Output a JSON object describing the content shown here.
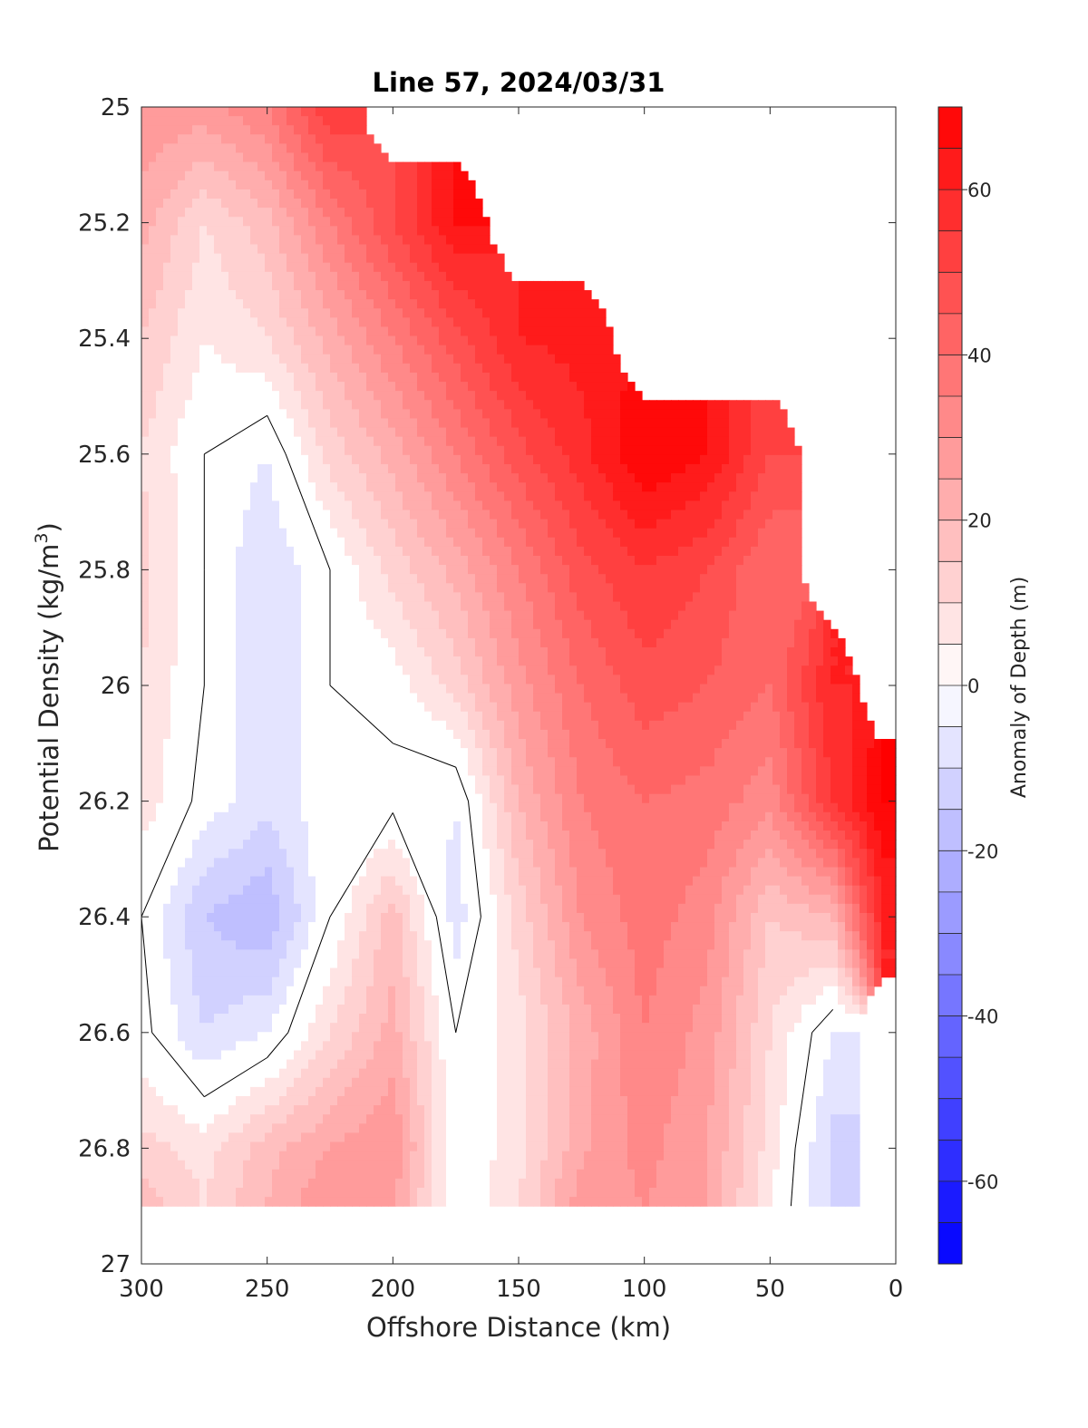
{
  "chart_data": {
    "type": "contourf",
    "title": "Line 57, 2024/03/31",
    "xlabel": "Offshore Distance (km)",
    "ylabel_prefix": "Potential Density (kg/m",
    "ylabel_sup": "3",
    "ylabel_suffix": ")",
    "xlim": [
      300,
      0
    ],
    "x_reversed": true,
    "ylim": [
      25,
      27
    ],
    "y_reversed": true,
    "xticks": [
      300,
      250,
      200,
      150,
      100,
      50,
      0
    ],
    "yticks": [
      25,
      25.2,
      25.4,
      25.6,
      25.8,
      26,
      26.2,
      26.4,
      26.6,
      26.8,
      27
    ],
    "colorbar": {
      "label": "Anomaly of Depth (m)",
      "range": [
        -70,
        70
      ],
      "ticks": [
        -60,
        -40,
        -20,
        0,
        20,
        40,
        60
      ],
      "level_step": 5,
      "low_color": "#0000ff",
      "mid_color": "#ffffff",
      "high_color": "#ff0000"
    },
    "zero_contour": "black",
    "x": [
      300,
      275,
      250,
      225,
      200,
      175,
      150,
      125,
      100,
      75,
      50,
      25,
      5
    ],
    "y": [
      25.0,
      25.2,
      25.4,
      25.6,
      25.8,
      26.0,
      26.2,
      26.4,
      26.6,
      26.8,
      26.9
    ],
    "z": [
      [
        30,
        28,
        35,
        55,
        null,
        null,
        null,
        null,
        null,
        null,
        null,
        null,
        null
      ],
      [
        22,
        10,
        18,
        35,
        50,
        65,
        null,
        null,
        null,
        null,
        null,
        null,
        null
      ],
      [
        15,
        5,
        10,
        22,
        35,
        48,
        60,
        62,
        null,
        null,
        null,
        null,
        null
      ],
      [
        10,
        0,
        -5,
        12,
        22,
        35,
        48,
        58,
        70,
        65,
        50,
        null,
        null
      ],
      [
        12,
        0,
        -10,
        0,
        12,
        22,
        35,
        48,
        55,
        50,
        40,
        null,
        null
      ],
      [
        10,
        0,
        -10,
        0,
        2,
        12,
        28,
        40,
        48,
        45,
        40,
        60,
        null
      ],
      [
        8,
        -2,
        -8,
        -2,
        -2,
        -5,
        20,
        35,
        40,
        38,
        32,
        55,
        70
      ],
      [
        0,
        -15,
        -20,
        0,
        18,
        -8,
        12,
        30,
        38,
        32,
        15,
        20,
        60
      ],
      [
        2,
        -10,
        -5,
        10,
        22,
        0,
        8,
        22,
        35,
        28,
        10,
        -5,
        null
      ],
      [
        12,
        8,
        18,
        25,
        30,
        0,
        8,
        24,
        32,
        25,
        8,
        -12,
        null
      ],
      [
        18,
        10,
        20,
        30,
        25,
        0,
        10,
        28,
        30,
        25,
        5,
        -10,
        null
      ]
    ]
  }
}
